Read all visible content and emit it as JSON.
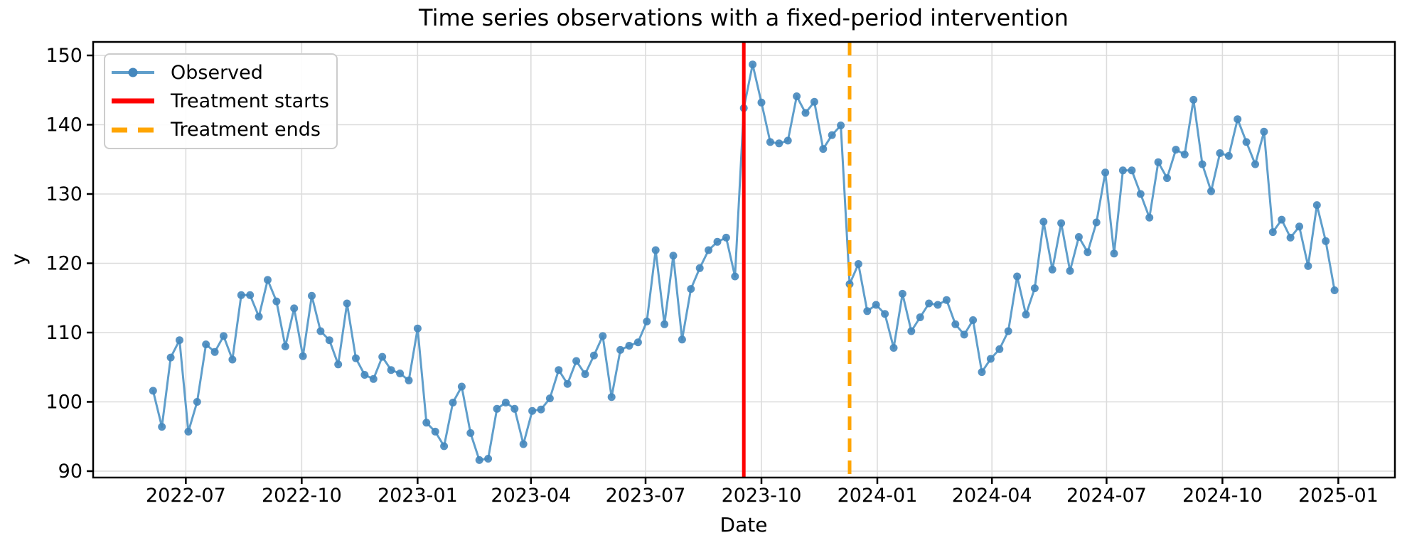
{
  "figure": {
    "title": "Time series observations with a fixed-period intervention",
    "xlabel": "Date",
    "ylabel": "y"
  },
  "legend": {
    "items": [
      {
        "label": "Observed",
        "type": "line-with-marker",
        "color": "#5f9ecb",
        "marker_color": "#4587bd"
      },
      {
        "label": "Treatment starts",
        "type": "solid-line",
        "color": "#fe0000"
      },
      {
        "label": "Treatment ends",
        "type": "dashed-line",
        "color": "#ffa500"
      }
    ]
  },
  "chart_data": {
    "type": "line",
    "title": "Time series observations with a fixed-period intervention",
    "xlabel": "Date",
    "ylabel": "y",
    "grid": true,
    "legend_position": "upper left",
    "x_tick_labels": [
      "2022-07",
      "2022-10",
      "2023-01",
      "2023-04",
      "2023-07",
      "2023-10",
      "2024-01",
      "2024-04",
      "2024-07",
      "2024-10",
      "2025-01"
    ],
    "y_ticks": [
      90,
      100,
      110,
      120,
      130,
      140,
      150
    ],
    "ylim": [
      89.1,
      152.0
    ],
    "colors": {
      "observed_line": "#5f9ecb",
      "observed_marker": "#4587bd",
      "treatment_start": "#fe0000",
      "treatment_end": "#ffa500",
      "grid": "#dcdcdc",
      "spine": "#000000"
    },
    "series": [
      {
        "name": "Observed",
        "freq": "weekly",
        "dates": [
          "2022-06-05",
          "2022-06-12",
          "2022-06-19",
          "2022-06-26",
          "2022-07-03",
          "2022-07-10",
          "2022-07-17",
          "2022-07-24",
          "2022-07-31",
          "2022-08-07",
          "2022-08-14",
          "2022-08-21",
          "2022-08-28",
          "2022-09-04",
          "2022-09-11",
          "2022-09-18",
          "2022-09-25",
          "2022-10-02",
          "2022-10-09",
          "2022-10-16",
          "2022-10-23",
          "2022-10-30",
          "2022-11-06",
          "2022-11-13",
          "2022-11-20",
          "2022-11-27",
          "2022-12-04",
          "2022-12-11",
          "2022-12-18",
          "2022-12-25",
          "2023-01-01",
          "2023-01-08",
          "2023-01-15",
          "2023-01-22",
          "2023-01-29",
          "2023-02-05",
          "2023-02-12",
          "2023-02-19",
          "2023-02-26",
          "2023-03-05",
          "2023-03-12",
          "2023-03-19",
          "2023-03-26",
          "2023-04-02",
          "2023-04-09",
          "2023-04-16",
          "2023-04-23",
          "2023-04-30",
          "2023-05-07",
          "2023-05-14",
          "2023-05-21",
          "2023-05-28",
          "2023-06-04",
          "2023-06-11",
          "2023-06-18",
          "2023-06-25",
          "2023-07-02",
          "2023-07-09",
          "2023-07-16",
          "2023-07-23",
          "2023-07-30",
          "2023-08-06",
          "2023-08-13",
          "2023-08-20",
          "2023-08-27",
          "2023-09-03",
          "2023-09-10",
          "2023-09-17",
          "2023-09-24",
          "2023-10-01",
          "2023-10-08",
          "2023-10-15",
          "2023-10-22",
          "2023-10-29",
          "2023-11-05",
          "2023-11-12",
          "2023-11-19",
          "2023-11-26",
          "2023-12-03",
          "2023-12-10",
          "2023-12-17",
          "2023-12-24",
          "2023-12-31",
          "2024-01-07",
          "2024-01-14",
          "2024-01-21",
          "2024-01-28",
          "2024-02-04",
          "2024-02-11",
          "2024-02-18",
          "2024-02-25",
          "2024-03-03",
          "2024-03-10",
          "2024-03-17",
          "2024-03-24",
          "2024-03-31",
          "2024-04-07",
          "2024-04-14",
          "2024-04-21",
          "2024-04-28",
          "2024-05-05",
          "2024-05-12",
          "2024-05-19",
          "2024-05-26",
          "2024-06-02",
          "2024-06-09",
          "2024-06-16",
          "2024-06-23",
          "2024-06-30",
          "2024-07-07",
          "2024-07-14",
          "2024-07-21",
          "2024-07-28",
          "2024-08-04",
          "2024-08-11",
          "2024-08-18",
          "2024-08-25",
          "2024-09-01",
          "2024-09-08",
          "2024-09-15",
          "2024-09-22",
          "2024-09-29",
          "2024-10-06",
          "2024-10-13",
          "2024-10-20",
          "2024-10-27",
          "2024-11-03",
          "2024-11-10",
          "2024-11-17",
          "2024-11-24",
          "2024-12-01",
          "2024-12-08",
          "2024-12-15",
          "2024-12-22",
          "2024-12-29"
        ],
        "values": [
          101.6,
          96.4,
          106.4,
          108.9,
          95.7,
          100.0,
          108.3,
          107.2,
          109.5,
          106.1,
          115.4,
          115.4,
          112.3,
          117.6,
          114.5,
          108.0,
          113.5,
          106.6,
          115.3,
          110.2,
          108.9,
          105.4,
          114.2,
          106.3,
          103.9,
          103.3,
          106.5,
          104.6,
          104.1,
          103.1,
          110.6,
          97.0,
          95.7,
          93.6,
          99.9,
          102.2,
          95.5,
          91.6,
          91.8,
          99.0,
          99.9,
          99.0,
          93.9,
          98.7,
          98.9,
          100.5,
          104.6,
          102.6,
          105.9,
          104.0,
          106.7,
          109.5,
          100.7,
          107.5,
          108.1,
          108.6,
          111.6,
          121.9,
          111.2,
          121.1,
          109.0,
          116.3,
          119.3,
          121.9,
          123.1,
          123.7,
          118.1,
          142.4,
          148.7,
          143.2,
          137.5,
          137.3,
          137.7,
          144.1,
          141.7,
          143.3,
          136.5,
          138.5,
          139.9,
          117.0,
          119.9,
          113.1,
          114.0,
          112.7,
          107.8,
          115.6,
          110.2,
          112.2,
          114.2,
          114.0,
          114.7,
          111.2,
          109.7,
          111.8,
          104.3,
          106.2,
          107.6,
          110.2,
          118.1,
          112.6,
          116.4,
          126.0,
          119.1,
          125.8,
          118.9,
          123.8,
          121.6,
          125.9,
          133.1,
          121.4,
          133.4,
          133.4,
          130.0,
          126.6,
          134.6,
          132.3,
          136.4,
          135.7,
          143.6,
          134.3,
          130.4,
          135.9,
          135.5,
          140.8,
          137.5,
          134.3,
          139.0,
          124.5,
          126.3,
          123.7,
          125.3,
          119.6,
          128.4,
          123.2,
          116.1
        ]
      }
    ],
    "annotations": [
      {
        "name": "Treatment starts",
        "date": "2023-09-17",
        "style": "solid",
        "color": "#fe0000"
      },
      {
        "name": "Treatment ends",
        "date": "2023-12-10",
        "style": "dashed",
        "color": "#ffa500"
      }
    ]
  }
}
